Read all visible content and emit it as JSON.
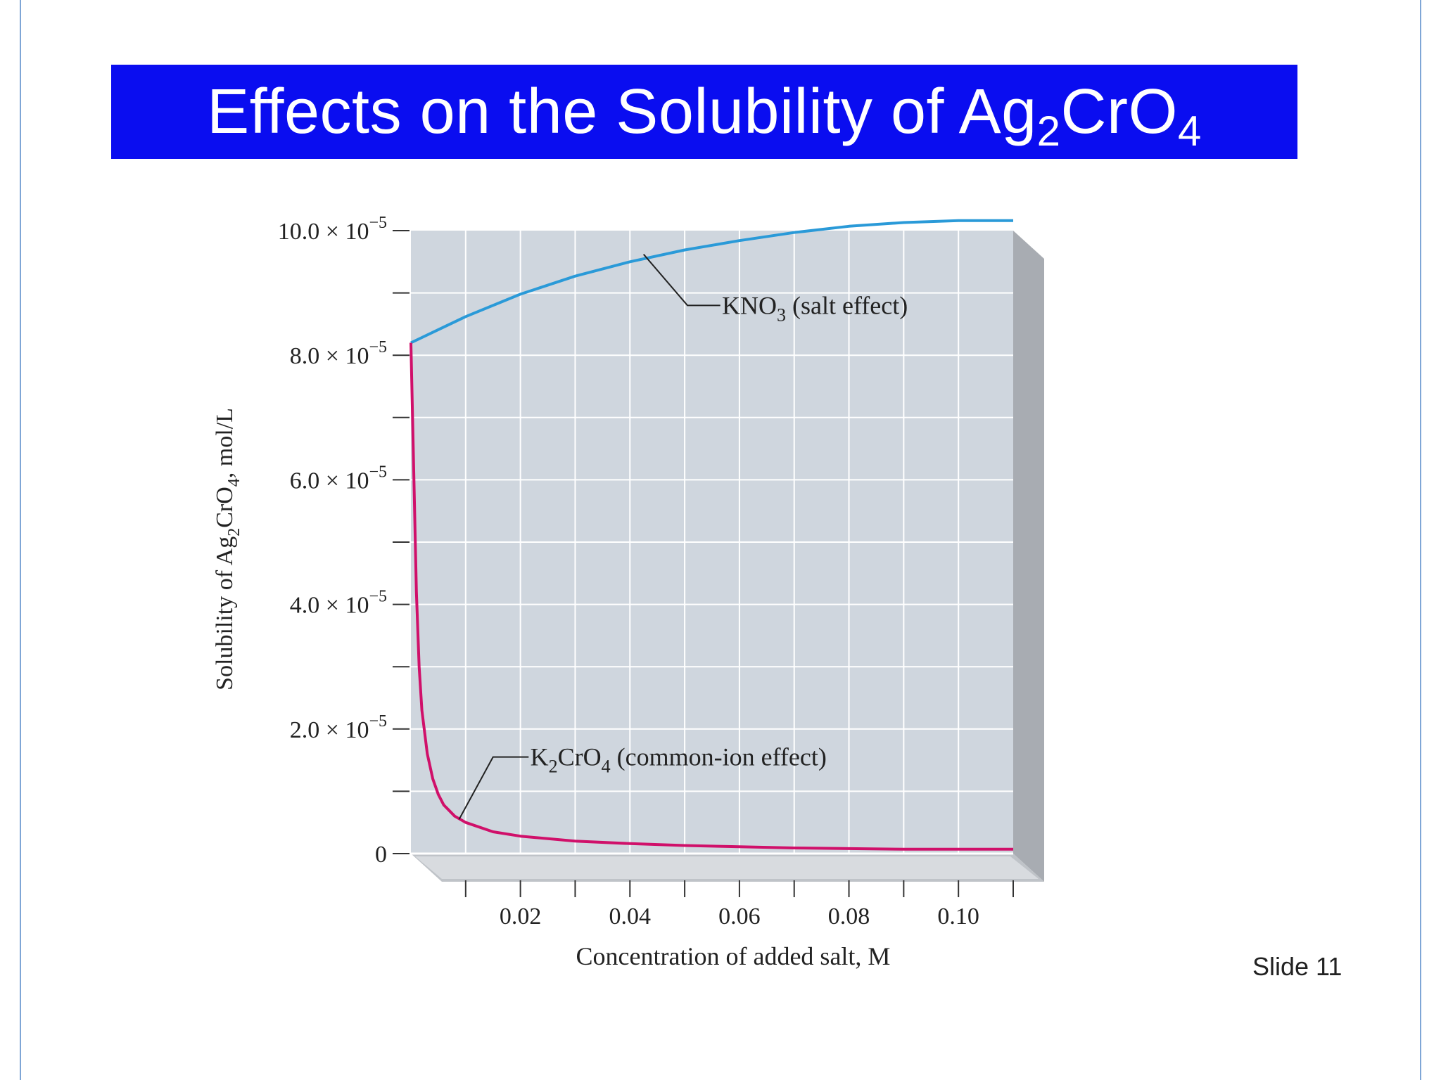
{
  "slide": {
    "title_main": "Effects on the Solubility of Ag",
    "title_sub1": "2",
    "title_mid": "CrO",
    "title_sub2": "4",
    "slide_number": "Slide 11"
  },
  "colors": {
    "title_bar": "#0a0df0",
    "plot_background": "#cfd6de",
    "kno3_curve": "#2a9ad8",
    "k2cro4_curve": "#d0106a"
  },
  "chart_data": {
    "type": "line",
    "xlabel": "Concentration of added salt, M",
    "ylabel_parts": [
      "Solubility of Ag",
      "2",
      "CrO",
      "4",
      ", mol/L"
    ],
    "xlim": [
      0,
      0.11
    ],
    "ylim": [
      0,
      0.0001
    ],
    "x_ticks": [
      0.01,
      0.02,
      0.03,
      0.04,
      0.05,
      0.06,
      0.07,
      0.08,
      0.09,
      0.1,
      0.11
    ],
    "x_tick_labels": [
      {
        "value": 0.02,
        "label": "0.02"
      },
      {
        "value": 0.04,
        "label": "0.04"
      },
      {
        "value": 0.06,
        "label": "0.06"
      },
      {
        "value": 0.08,
        "label": "0.08"
      },
      {
        "value": 0.1,
        "label": "0.10"
      }
    ],
    "y_ticks": [
      0,
      1e-05,
      2e-05,
      3e-05,
      4e-05,
      5e-05,
      6e-05,
      7e-05,
      8e-05,
      9e-05,
      0.0001
    ],
    "y_tick_labels": [
      {
        "value": 0,
        "label": "0",
        "mant": "",
        "exp": ""
      },
      {
        "value": 2e-05,
        "label": "2.0 × 10−5",
        "mant": "2.0 × 10",
        "exp": "−5"
      },
      {
        "value": 4e-05,
        "label": "4.0 × 10−5",
        "mant": "4.0 × 10",
        "exp": "−5"
      },
      {
        "value": 6e-05,
        "label": "6.0 × 10−5",
        "mant": "6.0 × 10",
        "exp": "−5"
      },
      {
        "value": 8e-05,
        "label": "8.0 × 10−5",
        "mant": "8.0 × 10",
        "exp": "−5"
      },
      {
        "value": 0.0001,
        "label": "10.0 × 10−5",
        "mant": "10.0 × 10",
        "exp": "−5"
      }
    ],
    "grid": true,
    "series": [
      {
        "name": "KNO3 (salt effect)",
        "label_main": "KNO",
        "label_sub": "3",
        "label_rest": " (salt effect)",
        "x": [
          0,
          0.01,
          0.02,
          0.03,
          0.04,
          0.05,
          0.06,
          0.07,
          0.08,
          0.09,
          0.1,
          0.11
        ],
        "y": [
          8.2e-05,
          8.62e-05,
          8.98e-05,
          9.27e-05,
          9.5e-05,
          9.69e-05,
          9.84e-05,
          9.97e-05,
          0.0001007,
          0.0001013,
          0.0001016,
          0.0001016
        ]
      },
      {
        "name": "K2CrO4 (common-ion effect)",
        "label_main": "K",
        "label_sub": "2",
        "label_rest": "CrO",
        "label_sub2": "4",
        "label_tail": " (common-ion effect)",
        "x": [
          0,
          0.0005,
          0.001,
          0.0015,
          0.002,
          0.003,
          0.004,
          0.005,
          0.006,
          0.008,
          0.01,
          0.015,
          0.02,
          0.03,
          0.04,
          0.05,
          0.06,
          0.07,
          0.08,
          0.09,
          0.1,
          0.11
        ],
        "y": [
          8.2e-05,
          6.2e-05,
          4.2e-05,
          3e-05,
          2.3e-05,
          1.6e-05,
          1.2e-05,
          9.5e-06,
          7.8e-06,
          6e-06,
          5e-06,
          3.5e-06,
          2.8e-06,
          2e-06,
          1.6e-06,
          1.3e-06,
          1.1e-06,
          9e-07,
          8e-07,
          7e-07,
          7e-07,
          7e-07
        ]
      }
    ]
  }
}
